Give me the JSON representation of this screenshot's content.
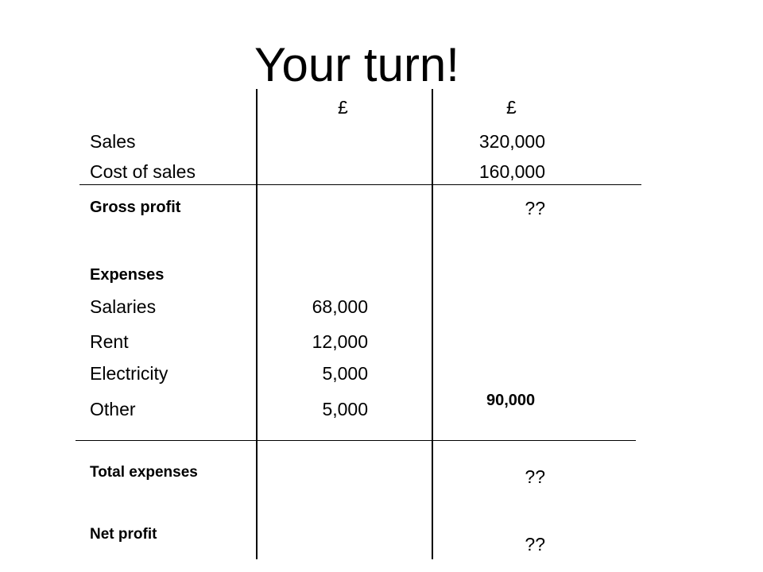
{
  "title": "Your turn!",
  "headers": {
    "col1": "£",
    "col2": "£"
  },
  "rows": {
    "sales": {
      "label": "Sales",
      "col2": "320,000"
    },
    "cost_of_sales": {
      "label": "Cost of sales",
      "col2": "160,000"
    },
    "gross_profit": {
      "label": "Gross profit",
      "col2": "??"
    },
    "expenses_heading": {
      "label": "Expenses"
    },
    "salaries": {
      "label": "Salaries",
      "col1": "68,000"
    },
    "rent": {
      "label": "Rent",
      "col1": "12,000"
    },
    "electricity": {
      "label": "Electricity",
      "col1": "5,000"
    },
    "other": {
      "label": "Other",
      "col1": "5,000"
    },
    "expenses_total_value": "90,000",
    "total_expenses": {
      "label": "Total expenses",
      "col2": "??"
    },
    "net_profit": {
      "label": "Net profit",
      "col2": "??"
    }
  }
}
